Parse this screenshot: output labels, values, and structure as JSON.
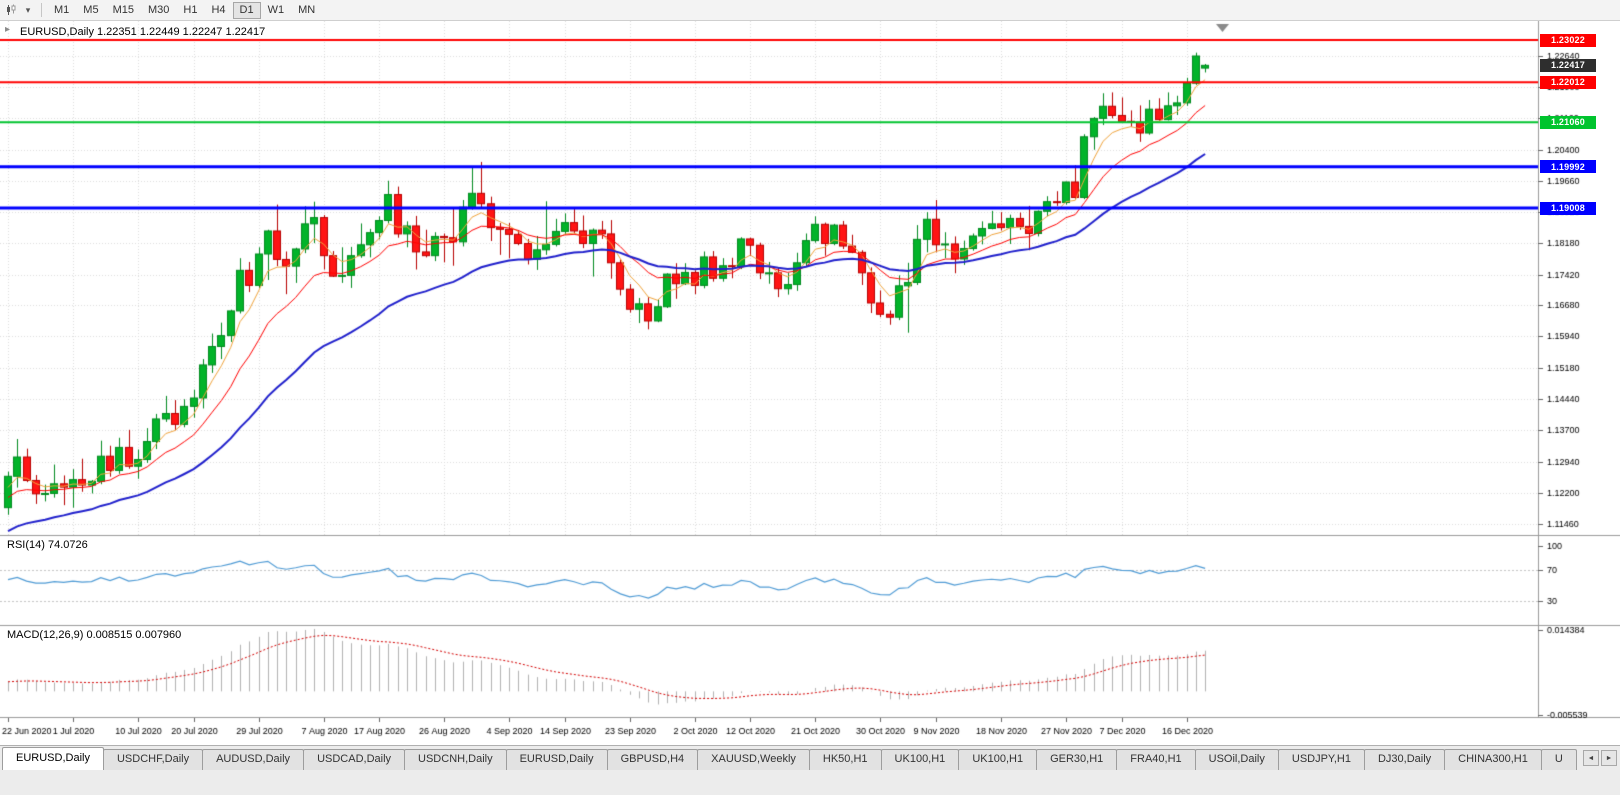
{
  "toolbar": {
    "dropdown_glyph": "▾",
    "timeframes": [
      {
        "label": "M1",
        "active": false
      },
      {
        "label": "M5",
        "active": false
      },
      {
        "label": "M15",
        "active": false
      },
      {
        "label": "M30",
        "active": false
      },
      {
        "label": "H1",
        "active": false
      },
      {
        "label": "H4",
        "active": false
      },
      {
        "label": "D1",
        "active": true
      },
      {
        "label": "W1",
        "active": false
      },
      {
        "label": "MN",
        "active": false
      }
    ]
  },
  "chart": {
    "title": "EURUSD,Daily 1.22351 1.22449 1.22247 1.22417",
    "symbol": "EURUSD",
    "period": "Daily",
    "open": "1.22351",
    "high": "1.22449",
    "low": "1.22247",
    "close": "1.22417",
    "one_click_glyph": "▸",
    "current_price": {
      "value": 1.22417,
      "label": "1.22417",
      "box_color": "#2e2e2e"
    }
  },
  "price_axis": {
    "ticks": [
      "1.22640",
      "1.21900",
      "1.21160",
      "1.20400",
      "1.19660",
      "1.18920",
      "1.18180",
      "1.17420",
      "1.16680",
      "1.15940",
      "1.15180",
      "1.14440",
      "1.13700",
      "1.12940",
      "1.12200",
      "1.11460"
    ]
  },
  "horizontal_lines": [
    {
      "label": "1.23022",
      "value": 1.23022,
      "color": "#FF0000",
      "width": 2
    },
    {
      "label": "1.22012",
      "value": 1.22012,
      "color": "#FF0000",
      "width": 2
    },
    {
      "label": "1.21060",
      "value": 1.2106,
      "color": "#00C42E",
      "width": 2
    },
    {
      "label": "1.19992",
      "value": 1.19992,
      "color": "#0000FF",
      "width": 3
    },
    {
      "label": "1.19008",
      "value": 1.19008,
      "color": "#0000FF",
      "width": 3
    }
  ],
  "rsi_panel": {
    "label": "RSI(14) 74.0726",
    "indicator": "RSI",
    "period": 14,
    "value": 74.0726,
    "line_color": "#4f9bd5",
    "level_lines": [
      70,
      30
    ],
    "scale_labels": [
      {
        "text": "100",
        "value": 100
      },
      {
        "text": "70",
        "value": 70
      },
      {
        "text": "30",
        "value": 30
      }
    ]
  },
  "macd_panel": {
    "label": "MACD(12,26,9) 0.008515 0.007960",
    "indicator": "MACD",
    "fast": 12,
    "slow": 26,
    "signal": 9,
    "macd_value": 0.008515,
    "signal_value": 0.00796,
    "histogram_color": "#b2b2b2",
    "signal_color": "#d40000",
    "scale_labels": [
      {
        "text": "0.014384",
        "value": 0.014384
      },
      {
        "text": "-0.005539",
        "value": -0.005539
      }
    ]
  },
  "x_axis": {
    "labels": [
      {
        "text": "22 Jun 2020",
        "index": 0
      },
      {
        "text": "1 Jul 2020",
        "index": 7
      },
      {
        "text": "10 Jul 2020",
        "index": 14
      },
      {
        "text": "20 Jul 2020",
        "index": 20
      },
      {
        "text": "29 Jul 2020",
        "index": 27
      },
      {
        "text": "7 Aug 2020",
        "index": 34
      },
      {
        "text": "17 Aug 2020",
        "index": 40
      },
      {
        "text": "26 Aug 2020",
        "index": 47
      },
      {
        "text": "4 Sep 2020",
        "index": 54
      },
      {
        "text": "14 Sep 2020",
        "index": 60
      },
      {
        "text": "23 Sep 2020",
        "index": 67
      },
      {
        "text": "2 Oct 2020",
        "index": 74
      },
      {
        "text": "12 Oct 2020",
        "index": 80
      },
      {
        "text": "21 Oct 2020",
        "index": 87
      },
      {
        "text": "30 Oct 2020",
        "index": 94
      },
      {
        "text": "9 Nov 2020",
        "index": 100
      },
      {
        "text": "18 Nov 2020",
        "index": 107
      },
      {
        "text": "27 Nov 2020",
        "index": 114
      },
      {
        "text": "7 Dec 2020",
        "index": 120
      },
      {
        "text": "16 Dec 2020",
        "index": 127
      }
    ]
  },
  "tab_bar": {
    "scroll_left_glyph": "◄",
    "scroll_right_glyph": "►",
    "tabs": [
      {
        "label": "EURUSD,Daily",
        "active": true
      },
      {
        "label": "USDCHF,Daily",
        "active": false
      },
      {
        "label": "AUDUSD,Daily",
        "active": false
      },
      {
        "label": "USDCAD,Daily",
        "active": false
      },
      {
        "label": "USDCNH,Daily",
        "active": false
      },
      {
        "label": "EURUSD,Daily",
        "active": false
      },
      {
        "label": "GBPUSD,H4",
        "active": false
      },
      {
        "label": "XAUUSD,Weekly",
        "active": false
      },
      {
        "label": "HK50,H1",
        "active": false
      },
      {
        "label": "UK100,H1",
        "active": false
      },
      {
        "label": "UK100,H1",
        "active": false
      },
      {
        "label": "GER30,H1",
        "active": false
      },
      {
        "label": "FRA40,H1",
        "active": false
      },
      {
        "label": "USOil,Daily",
        "active": false
      },
      {
        "label": "USDJPY,H1",
        "active": false
      },
      {
        "label": "DJ30,Daily",
        "active": false
      },
      {
        "label": "CHINA300,H1",
        "active": false
      },
      {
        "label": "U",
        "active": false
      }
    ]
  },
  "chart_data": {
    "type": "candlestick",
    "symbol": "EURUSD",
    "timeframe": "D1",
    "candle_colors": {
      "bull_fill": "#02b32a",
      "bull_stroke": "#018a1f",
      "bear_fill": "#ff1414",
      "bear_stroke": "#b80000"
    },
    "moving_averages": [
      {
        "name": "fast-ma",
        "period": 5,
        "color": "#f0a43c",
        "width": 1,
        "seed": 1.122
      },
      {
        "name": "mid-ma",
        "period": 12,
        "color": "#ff0000",
        "width": 1,
        "seed": 1.12
      },
      {
        "name": "slow-ma",
        "period": 30,
        "color": "#2020cc",
        "width": 2,
        "seed": 1.112
      }
    ],
    "candles": [
      [
        1.1185,
        1.1271,
        1.1168,
        1.126
      ],
      [
        1.126,
        1.1349,
        1.1233,
        1.1306
      ],
      [
        1.1306,
        1.1326,
        1.1246,
        1.125
      ],
      [
        1.125,
        1.1263,
        1.1194,
        1.1218
      ],
      [
        1.1218,
        1.124,
        1.12,
        1.1219
      ],
      [
        1.1219,
        1.1288,
        1.1209,
        1.1242
      ],
      [
        1.1242,
        1.1262,
        1.1191,
        1.1234
      ],
      [
        1.1234,
        1.1277,
        1.1185,
        1.1252
      ],
      [
        1.1252,
        1.1302,
        1.1223,
        1.1239
      ],
      [
        1.1239,
        1.1251,
        1.1219,
        1.1248
      ],
      [
        1.1248,
        1.1345,
        1.1241,
        1.1308
      ],
      [
        1.1308,
        1.1333,
        1.1259,
        1.1274
      ],
      [
        1.1274,
        1.1352,
        1.1266,
        1.1329
      ],
      [
        1.1329,
        1.1371,
        1.1278,
        1.1284
      ],
      [
        1.1284,
        1.1324,
        1.1254,
        1.13
      ],
      [
        1.13,
        1.1375,
        1.1292,
        1.1343
      ],
      [
        1.1343,
        1.1409,
        1.1325,
        1.1397
      ],
      [
        1.1397,
        1.1452,
        1.139,
        1.141
      ],
      [
        1.141,
        1.1442,
        1.137,
        1.1384
      ],
      [
        1.1384,
        1.1444,
        1.1377,
        1.1427
      ],
      [
        1.1427,
        1.1467,
        1.14,
        1.1447
      ],
      [
        1.1447,
        1.154,
        1.1422,
        1.1526
      ],
      [
        1.1526,
        1.1601,
        1.1507,
        1.157
      ],
      [
        1.157,
        1.1627,
        1.154,
        1.1596
      ],
      [
        1.1596,
        1.1658,
        1.1581,
        1.1655
      ],
      [
        1.1655,
        1.1781,
        1.1649,
        1.1752
      ],
      [
        1.1752,
        1.1772,
        1.17,
        1.1716
      ],
      [
        1.1716,
        1.1807,
        1.171,
        1.1791
      ],
      [
        1.1791,
        1.1849,
        1.1729,
        1.1846
      ],
      [
        1.1846,
        1.1909,
        1.1762,
        1.1778
      ],
      [
        1.1778,
        1.1797,
        1.1695,
        1.1762
      ],
      [
        1.1762,
        1.1806,
        1.1722,
        1.1803
      ],
      [
        1.1803,
        1.1905,
        1.1793,
        1.1863
      ],
      [
        1.1863,
        1.1916,
        1.1817,
        1.1878
      ],
      [
        1.1878,
        1.1884,
        1.1754,
        1.1787
      ],
      [
        1.1787,
        1.1798,
        1.1736,
        1.1738
      ],
      [
        1.1738,
        1.1807,
        1.1722,
        1.174
      ],
      [
        1.174,
        1.1808,
        1.171,
        1.1787
      ],
      [
        1.1787,
        1.1864,
        1.1782,
        1.1813
      ],
      [
        1.1813,
        1.1851,
        1.1783,
        1.1842
      ],
      [
        1.1842,
        1.1881,
        1.1826,
        1.1871
      ],
      [
        1.1871,
        1.1966,
        1.1864,
        1.1933
      ],
      [
        1.1933,
        1.1952,
        1.183,
        1.1839
      ],
      [
        1.1839,
        1.1869,
        1.1807,
        1.1858
      ],
      [
        1.1858,
        1.1882,
        1.1754,
        1.1796
      ],
      [
        1.1796,
        1.1849,
        1.1783,
        1.1787
      ],
      [
        1.1787,
        1.1843,
        1.1774,
        1.1833
      ],
      [
        1.1833,
        1.184,
        1.1771,
        1.183
      ],
      [
        1.183,
        1.1899,
        1.1763,
        1.182
      ],
      [
        1.182,
        1.192,
        1.1809,
        1.1903
      ],
      [
        1.1903,
        1.1997,
        1.1897,
        1.1936
      ],
      [
        1.1936,
        1.2011,
        1.1899,
        1.1911
      ],
      [
        1.1911,
        1.1928,
        1.1822,
        1.1854
      ],
      [
        1.1854,
        1.1865,
        1.1789,
        1.185
      ],
      [
        1.185,
        1.1865,
        1.1781,
        1.1838
      ],
      [
        1.1838,
        1.1848,
        1.1812,
        1.1816
      ],
      [
        1.1816,
        1.1827,
        1.1766,
        1.1778
      ],
      [
        1.1778,
        1.1834,
        1.1753,
        1.1801
      ],
      [
        1.1801,
        1.1917,
        1.1789,
        1.1814
      ],
      [
        1.1814,
        1.1875,
        1.1809,
        1.1845
      ],
      [
        1.1845,
        1.1888,
        1.1838,
        1.1866
      ],
      [
        1.1866,
        1.19,
        1.184,
        1.1846
      ],
      [
        1.1846,
        1.1883,
        1.1805,
        1.1816
      ],
      [
        1.1816,
        1.1852,
        1.1737,
        1.1848
      ],
      [
        1.1848,
        1.187,
        1.1827,
        1.1839
      ],
      [
        1.1839,
        1.1872,
        1.1732,
        1.177
      ],
      [
        1.177,
        1.1778,
        1.1692,
        1.1707
      ],
      [
        1.1707,
        1.1719,
        1.1651,
        1.1659
      ],
      [
        1.1659,
        1.1686,
        1.1626,
        1.1672
      ],
      [
        1.1672,
        1.1688,
        1.1611,
        1.1631
      ],
      [
        1.1631,
        1.1683,
        1.1628,
        1.1665
      ],
      [
        1.1665,
        1.1745,
        1.1662,
        1.1743
      ],
      [
        1.1743,
        1.1769,
        1.1684,
        1.172
      ],
      [
        1.172,
        1.1769,
        1.1717,
        1.1747
      ],
      [
        1.1747,
        1.1752,
        1.1695,
        1.1716
      ],
      [
        1.1716,
        1.1797,
        1.1709,
        1.1784
      ],
      [
        1.1784,
        1.1798,
        1.1725,
        1.1733
      ],
      [
        1.1733,
        1.1781,
        1.1725,
        1.1763
      ],
      [
        1.1763,
        1.1782,
        1.1733,
        1.1761
      ],
      [
        1.1761,
        1.1831,
        1.1755,
        1.1827
      ],
      [
        1.1827,
        1.183,
        1.1786,
        1.1812
      ],
      [
        1.1812,
        1.1818,
        1.1731,
        1.1746
      ],
      [
        1.1746,
        1.1772,
        1.172,
        1.1746
      ],
      [
        1.1746,
        1.1758,
        1.1688,
        1.1708
      ],
      [
        1.1708,
        1.1746,
        1.1694,
        1.1718
      ],
      [
        1.1718,
        1.1794,
        1.1703,
        1.177
      ],
      [
        1.177,
        1.184,
        1.176,
        1.1823
      ],
      [
        1.1823,
        1.1881,
        1.1818,
        1.1862
      ],
      [
        1.1862,
        1.1866,
        1.1787,
        1.1816
      ],
      [
        1.1816,
        1.1863,
        1.1812,
        1.186
      ],
      [
        1.186,
        1.187,
        1.1803,
        1.181
      ],
      [
        1.181,
        1.1837,
        1.1793,
        1.1795
      ],
      [
        1.1795,
        1.18,
        1.1717,
        1.1746
      ],
      [
        1.1746,
        1.1759,
        1.165,
        1.1674
      ],
      [
        1.1674,
        1.1704,
        1.164,
        1.1647
      ],
      [
        1.1647,
        1.1656,
        1.1622,
        1.164
      ],
      [
        1.164,
        1.174,
        1.1633,
        1.1715
      ],
      [
        1.1715,
        1.177,
        1.1603,
        1.1723
      ],
      [
        1.1723,
        1.186,
        1.1717,
        1.1826
      ],
      [
        1.1826,
        1.1891,
        1.1795,
        1.1874
      ],
      [
        1.1874,
        1.192,
        1.1795,
        1.1813
      ],
      [
        1.1813,
        1.1843,
        1.1781,
        1.1815
      ],
      [
        1.1815,
        1.1833,
        1.1745,
        1.1779
      ],
      [
        1.1779,
        1.1823,
        1.1765,
        1.1804
      ],
      [
        1.1804,
        1.184,
        1.1799,
        1.1834
      ],
      [
        1.1834,
        1.1869,
        1.1814,
        1.1852
      ],
      [
        1.1852,
        1.1894,
        1.185,
        1.1863
      ],
      [
        1.1863,
        1.1891,
        1.1847,
        1.1854
      ],
      [
        1.1854,
        1.1885,
        1.1815,
        1.1876
      ],
      [
        1.1876,
        1.189,
        1.1849,
        1.1857
      ],
      [
        1.1857,
        1.1906,
        1.18,
        1.184
      ],
      [
        1.184,
        1.1895,
        1.1833,
        1.1893
      ],
      [
        1.1893,
        1.1929,
        1.1881,
        1.1916
      ],
      [
        1.1916,
        1.1941,
        1.1906,
        1.1914
      ],
      [
        1.1914,
        1.1964,
        1.1909,
        1.1963
      ],
      [
        1.1963,
        1.2003,
        1.1923,
        1.1926
      ],
      [
        1.1926,
        1.2077,
        1.1922,
        1.2071
      ],
      [
        1.2071,
        1.2118,
        1.204,
        1.2115
      ],
      [
        1.2115,
        1.2175,
        1.2099,
        1.2144
      ],
      [
        1.2144,
        1.2177,
        1.2115,
        1.2122
      ],
      [
        1.2122,
        1.2165,
        1.2109,
        1.2108
      ],
      [
        1.2108,
        1.2134,
        1.2095,
        1.2106
      ],
      [
        1.2106,
        1.2146,
        1.2059,
        1.208
      ],
      [
        1.208,
        1.2159,
        1.2076,
        1.2137
      ],
      [
        1.2137,
        1.2163,
        1.2109,
        1.2112
      ],
      [
        1.2112,
        1.2177,
        1.211,
        1.2145
      ],
      [
        1.2145,
        1.2169,
        1.2123,
        1.2152
      ],
      [
        1.2152,
        1.2212,
        1.2145,
        1.2199
      ],
      [
        1.2199,
        1.2272,
        1.2195,
        1.2264
      ],
      [
        1.22351,
        1.22449,
        1.22247,
        1.22417
      ]
    ]
  }
}
